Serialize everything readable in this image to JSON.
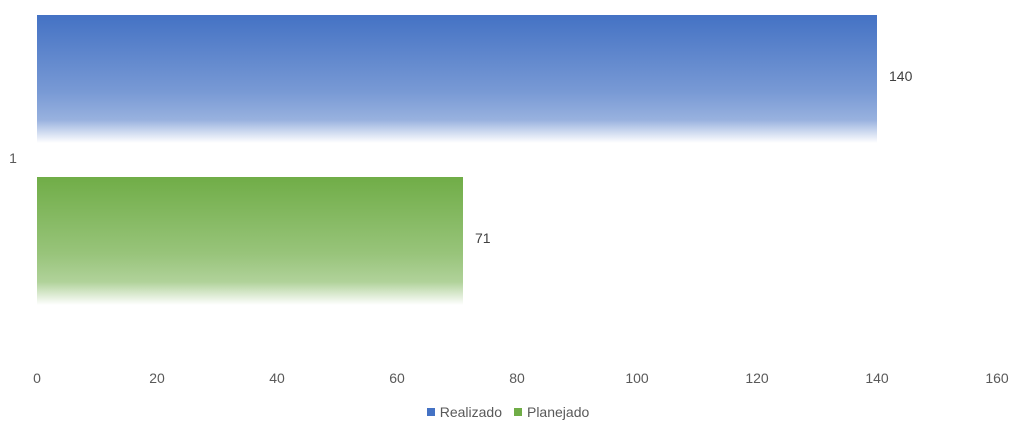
{
  "chart_data": {
    "type": "bar",
    "orientation": "horizontal",
    "categories": [
      "1"
    ],
    "series": [
      {
        "name": "Realizado",
        "values": [
          140
        ],
        "color": "#4472C4"
      },
      {
        "name": "Planejado",
        "values": [
          71
        ],
        "color": "#70AD47"
      }
    ],
    "x_ticks": [
      "0",
      "20",
      "40",
      "60",
      "80",
      "100",
      "120",
      "140",
      "160"
    ],
    "xlim": [
      0,
      160
    ],
    "data_labels": [
      "140",
      "71"
    ],
    "grid": false,
    "legend_position": "bottom"
  }
}
